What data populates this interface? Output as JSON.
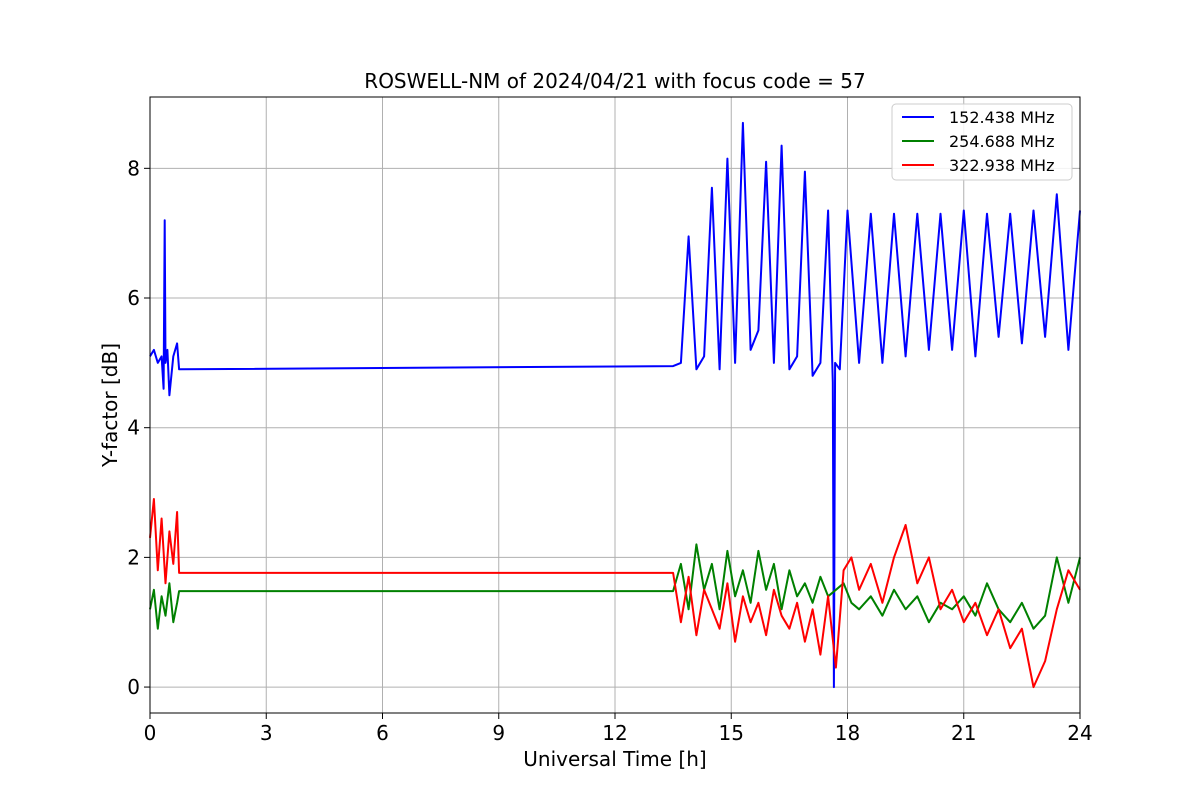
{
  "chart_data": {
    "type": "line",
    "title": "ROSWELL-NM of 2024/04/21 with focus code = 57",
    "xlabel": "Universal Time [h]",
    "ylabel": "Y-factor [dB]",
    "xlim": [
      0,
      24
    ],
    "ylim": [
      -0.4,
      9.1
    ],
    "xticks": [
      0,
      3,
      6,
      9,
      12,
      15,
      18,
      21,
      24
    ],
    "yticks": [
      0,
      2,
      4,
      6,
      8
    ],
    "grid": true,
    "legend_position": "top-right",
    "series": [
      {
        "name": "152.438 MHz",
        "color": "#0000ff",
        "x": [
          0.0,
          0.1,
          0.2,
          0.3,
          0.35,
          0.38,
          0.4,
          0.45,
          0.5,
          0.6,
          0.7,
          0.75,
          0.78,
          13.5,
          13.7,
          13.9,
          14.1,
          14.3,
          14.5,
          14.7,
          14.9,
          15.1,
          15.3,
          15.5,
          15.7,
          15.9,
          16.1,
          16.3,
          16.5,
          16.7,
          16.9,
          17.1,
          17.3,
          17.5,
          17.62,
          17.65,
          17.68,
          17.8,
          18.0,
          18.3,
          18.6,
          18.9,
          19.2,
          19.5,
          19.8,
          20.1,
          20.4,
          20.7,
          21.0,
          21.3,
          21.6,
          21.9,
          22.2,
          22.5,
          22.8,
          23.1,
          23.4,
          23.7,
          24.0
        ],
        "y": [
          5.1,
          5.2,
          5.0,
          5.1,
          4.6,
          7.2,
          5.0,
          5.2,
          4.5,
          5.1,
          5.3,
          4.9,
          4.9,
          4.95,
          5.0,
          6.95,
          4.9,
          5.1,
          7.7,
          4.9,
          8.15,
          5.0,
          8.7,
          5.2,
          5.5,
          8.1,
          5.0,
          8.35,
          4.9,
          5.1,
          7.95,
          4.8,
          5.0,
          7.35,
          4.7,
          0.0,
          5.0,
          4.9,
          7.35,
          5.0,
          7.3,
          5.0,
          7.3,
          5.1,
          7.3,
          5.2,
          7.3,
          5.2,
          7.35,
          5.1,
          7.3,
          5.4,
          7.3,
          5.3,
          7.35,
          5.4,
          7.6,
          5.2,
          7.35
        ]
      },
      {
        "name": "254.688 MHz",
        "color": "#008000",
        "x": [
          0.0,
          0.1,
          0.2,
          0.3,
          0.4,
          0.5,
          0.6,
          0.7,
          0.75,
          0.78,
          13.5,
          13.7,
          13.9,
          14.1,
          14.3,
          14.5,
          14.7,
          14.9,
          15.1,
          15.3,
          15.5,
          15.7,
          15.9,
          16.1,
          16.3,
          16.5,
          16.7,
          16.9,
          17.1,
          17.3,
          17.5,
          17.7,
          17.9,
          18.1,
          18.3,
          18.6,
          18.9,
          19.2,
          19.5,
          19.8,
          20.1,
          20.4,
          20.7,
          21.0,
          21.3,
          21.6,
          21.9,
          22.2,
          22.5,
          22.8,
          23.1,
          23.4,
          23.7,
          24.0
        ],
        "y": [
          1.2,
          1.5,
          0.9,
          1.4,
          1.1,
          1.6,
          1.0,
          1.3,
          1.48,
          1.48,
          1.48,
          1.9,
          1.2,
          2.2,
          1.5,
          1.9,
          1.2,
          2.1,
          1.4,
          1.8,
          1.3,
          2.1,
          1.5,
          1.9,
          1.2,
          1.8,
          1.4,
          1.6,
          1.3,
          1.7,
          1.4,
          1.5,
          1.6,
          1.3,
          1.2,
          1.4,
          1.1,
          1.5,
          1.2,
          1.4,
          1.0,
          1.3,
          1.2,
          1.4,
          1.1,
          1.6,
          1.2,
          1.0,
          1.3,
          0.9,
          1.1,
          2.0,
          1.3,
          2.0
        ]
      },
      {
        "name": "322.938 MHz",
        "color": "#ff0000",
        "x": [
          0.0,
          0.1,
          0.2,
          0.3,
          0.4,
          0.5,
          0.6,
          0.7,
          0.75,
          0.78,
          13.5,
          13.7,
          13.9,
          14.1,
          14.3,
          14.5,
          14.7,
          14.9,
          15.1,
          15.3,
          15.5,
          15.7,
          15.9,
          16.1,
          16.3,
          16.5,
          16.7,
          16.9,
          17.1,
          17.3,
          17.5,
          17.7,
          17.9,
          18.1,
          18.3,
          18.6,
          18.9,
          19.2,
          19.5,
          19.8,
          20.1,
          20.4,
          20.7,
          21.0,
          21.3,
          21.6,
          21.9,
          22.2,
          22.5,
          22.8,
          23.1,
          23.4,
          23.7,
          24.0
        ],
        "y": [
          2.3,
          2.9,
          1.8,
          2.6,
          1.6,
          2.4,
          1.9,
          2.7,
          1.76,
          1.76,
          1.76,
          1.0,
          1.7,
          0.8,
          1.5,
          1.2,
          0.9,
          1.6,
          0.7,
          1.4,
          1.0,
          1.3,
          0.8,
          1.5,
          1.1,
          0.9,
          1.3,
          0.7,
          1.2,
          0.5,
          1.4,
          0.3,
          1.8,
          2.0,
          1.5,
          1.9,
          1.3,
          2.0,
          2.5,
          1.6,
          2.0,
          1.2,
          1.5,
          1.0,
          1.3,
          0.8,
          1.2,
          0.6,
          0.9,
          0.0,
          0.4,
          1.2,
          1.8,
          1.5
        ]
      }
    ]
  }
}
